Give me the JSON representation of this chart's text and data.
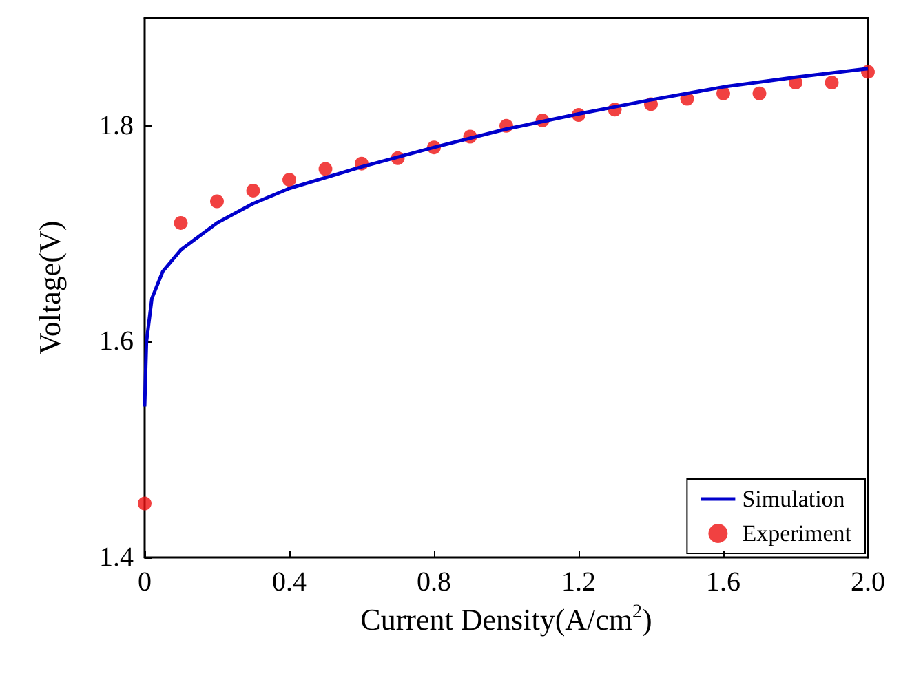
{
  "chart_data": {
    "type": "line",
    "xlabel": "Current Density(A/cm$^{2}$)",
    "ylabel": "Voltage(V)",
    "xlim": [
      0,
      2.0
    ],
    "xticks": [
      0,
      0.4,
      0.8,
      1.2,
      1.6,
      {
        "value": 2.0,
        "label": "2.0"
      }
    ],
    "ylim": [
      1.4,
      1.9
    ],
    "yticks": [
      1.4,
      1.6,
      1.8
    ],
    "grid": false,
    "legend": "bottom right",
    "series": [
      {
        "name": "Simulation",
        "color": "#0000cc",
        "marker": "none",
        "line_style": "solid",
        "x": [
          0,
          0.005,
          0.02,
          0.05,
          0.1,
          0.2,
          0.3,
          0.4,
          0.6,
          0.8,
          1.0,
          1.2,
          1.4,
          1.6,
          1.8,
          2.0
        ],
        "values": [
          1.54,
          1.6,
          1.64,
          1.665,
          1.685,
          1.71,
          1.728,
          1.742,
          1.762,
          1.78,
          1.797,
          1.811,
          1.824,
          1.836,
          1.845,
          1.853
        ]
      },
      {
        "name": "Experiment",
        "type": "scatter",
        "color": "#ee1111",
        "marker": "circle",
        "x": [
          0,
          0.1,
          0.2,
          0.3,
          0.4,
          0.5,
          0.6,
          0.7,
          0.8,
          0.9,
          1.0,
          1.1,
          1.2,
          1.3,
          1.4,
          1.5,
          1.6,
          1.7,
          1.8,
          1.9,
          2.0
        ],
        "values": [
          1.45,
          1.71,
          1.73,
          1.74,
          1.75,
          1.76,
          1.765,
          1.77,
          1.78,
          1.79,
          1.8,
          1.805,
          1.81,
          1.815,
          1.82,
          1.825,
          1.83,
          1.83,
          1.84,
          1.84,
          1.85
        ]
      }
    ]
  }
}
